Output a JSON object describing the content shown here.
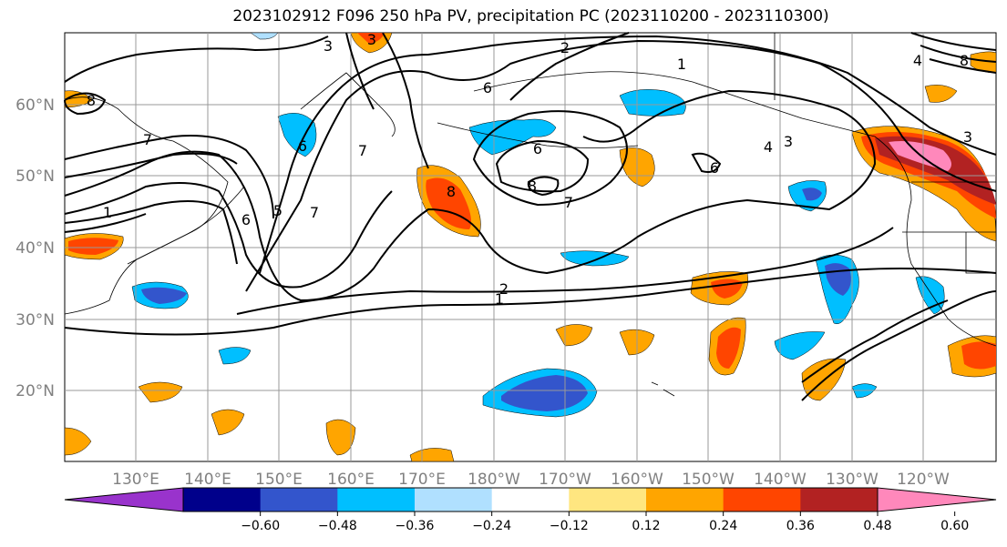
{
  "title": "2023102912 F096 250 hPa PV, precipitation PC (2023110200 - 2023110300)",
  "lat_labels": [
    "60°N",
    "50°N",
    "40°N",
    "30°N",
    "20°N"
  ],
  "lon_labels": [
    "130°E",
    "140°E",
    "150°E",
    "160°E",
    "170°E",
    "180°W",
    "170°W",
    "160°W",
    "150°W",
    "140°W",
    "130°W",
    "120°W"
  ],
  "colorbar": {
    "ticks": [
      "-0.60",
      "-0.48",
      "-0.36",
      "-0.24",
      "-0.12",
      "0.12",
      "0.24",
      "0.36",
      "0.48",
      "0.60"
    ],
    "colors": [
      "#9933cc",
      "#00008b",
      "#3355cc",
      "#00bfff",
      "#b0e0ff",
      "#ffffff",
      "#ffe680",
      "#ffa500",
      "#ff4500",
      "#b22222",
      "#ff88bb"
    ]
  },
  "contour_labels": [
    "3",
    "2",
    "1",
    "6",
    "7",
    "8",
    "6",
    "8",
    "7",
    "4",
    "3",
    "6",
    "3",
    "1",
    "7",
    "8",
    "3",
    "7",
    "8",
    "6",
    "5",
    "4",
    "6",
    "2",
    "1"
  ],
  "fill_colors": {
    "light_blue": "#00bfff",
    "mid_blue": "#3355cc",
    "pale_blue": "#b0e0ff",
    "yellow": "#ffe680",
    "orange": "#ffa500",
    "red_orange": "#ff4500",
    "dark_red": "#b22222",
    "pink": "#ff88bb"
  }
}
